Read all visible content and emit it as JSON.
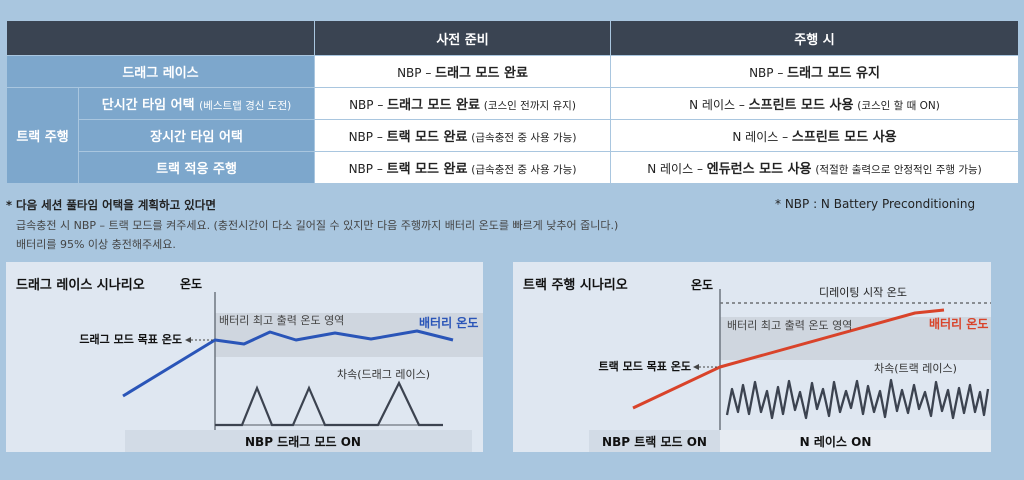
{
  "table": {
    "headers": [
      "사전 준비",
      "주행 시"
    ],
    "drag_race": {
      "label": "드래그 레이스",
      "prep": {
        "prefix": "NBP – ",
        "mode": "드래그 모드 완료",
        "note": ""
      },
      "drive": {
        "prefix": "NBP – ",
        "mode": "드래그 모드 유지",
        "note": ""
      }
    },
    "track_group_label": "트랙 주행",
    "track_rows": [
      {
        "label": "단시간 타임 어택",
        "label_note": "(베스트랩 경신 도전)",
        "prep": {
          "prefix": "NBP – ",
          "mode": "드래그 모드 완료",
          "note": "(코스인 전까지 유지)"
        },
        "drive": {
          "prefix": "N 레이스 – ",
          "mode": "스프린트 모드 사용",
          "note": "(코스인 할 때 ON)"
        }
      },
      {
        "label": "장시간 타임 어택",
        "label_note": "",
        "prep": {
          "prefix": "NBP – ",
          "mode": "트랙 모드 완료",
          "note": "(급속충전 중 사용 가능)"
        },
        "drive": {
          "prefix": "N 레이스 – ",
          "mode": "스프린트 모드 사용",
          "note": ""
        }
      },
      {
        "label": "트랙 적응 주행",
        "label_note": "",
        "prep": {
          "prefix": "NBP – ",
          "mode": "트랙 모드 완료",
          "note": "(급속충전 중 사용 가능)"
        },
        "drive": {
          "prefix": "N 레이스 – ",
          "mode": "엔듀런스 모드 사용",
          "note": "(적절한 출력으로 안정적인 주행 가능)"
        }
      }
    ]
  },
  "notes": {
    "title": "* 다음 세션 풀타임 어택을 계획하고 있다면",
    "line1": "급속충전 시 NBP – 트랙 모드를 켜주세요. (충전시간이 다소 길어질 수 있지만 다음 주행까지 배터리 온도를 빠르게 낮추어 줍니다.)",
    "line2": "배터리를 95% 이상 충전해주세요.",
    "nbp_definition": "* NBP : N Battery Preconditioning"
  },
  "drag_chart": {
    "title": "드래그 레이스 시나리오",
    "y_label": "온도",
    "target_label": "드래그 모드 목표 온도",
    "zone_label": "배터리 최고 출력 온도 영역",
    "battery_label": "배터리 온도",
    "speed_label": "차속(드래그 레이스)",
    "bar_label": "NBP 드래그 모드 ON"
  },
  "track_chart": {
    "title": "트랙 주행 시나리오",
    "y_label": "온도",
    "derating_label": "디레이팅 시작 온도",
    "target_label": "트랙 모드 목표 온도",
    "zone_label": "배터리 최고 출력 온도 영역",
    "battery_label": "배터리 온도",
    "speed_label": "차속(트랙 레이스)",
    "bar_left_label": "NBP 트랙 모드 ON",
    "bar_right_label": "N 레이스 ON"
  },
  "colors": {
    "header_bg": "#3a4452",
    "row_label_bg": "#7da7cc",
    "page_bg": "#a9c6df",
    "drag_battery_line": "#2a55b8",
    "track_battery_line": "#d9432a",
    "speed_line": "#3c4350"
  }
}
